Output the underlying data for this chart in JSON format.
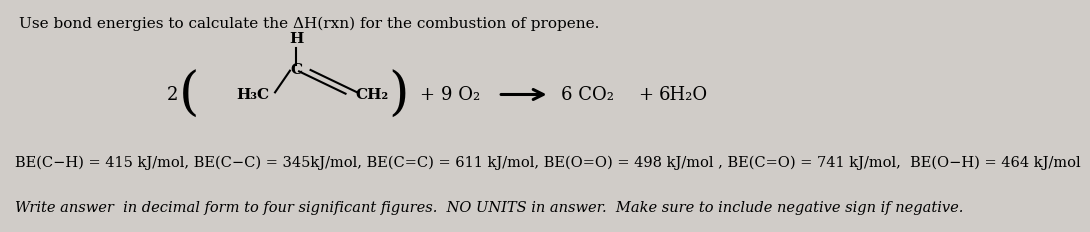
{
  "title": "Use bond energies to calculate the ΔH(rxn) for the combustion of propene.",
  "title_fontsize": 11,
  "be_line": "BE(C−H) = 415 kJ/mol, BE(C−C) = 345kJ/mol, BE(C=C) = 611 kJ/mol, BE(O=O) = 498 kJ/mol , BE(C=O) = 741 kJ/mol,  BE(O−H) = 464 kJ/mol",
  "be_fontsize": 10.5,
  "instruction_line": "Write answer  in decimal form to four significant figures.  NO UNITS in answer.  Make sure to include negative sign if negative.",
  "instruction_fontsize": 10.5,
  "background_color": "#d0ccc8",
  "text_color": "#000000",
  "coefficient2": "2",
  "coeff_O2": "9 O₂",
  "coeff_CO2": "6 CO₂",
  "coeff_H2O": "6H₂O",
  "H3C_label": "H₃C",
  "CH2_label": "CH₂",
  "H_label": "H",
  "C_label": "C"
}
